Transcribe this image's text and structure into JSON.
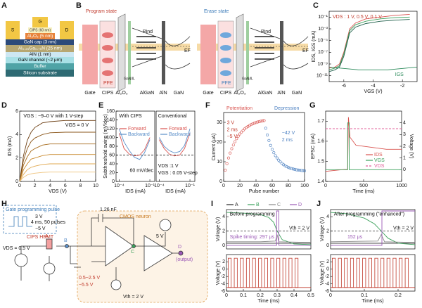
{
  "a": {
    "label": "A",
    "layers": [
      "S",
      "G",
      "D",
      "CIPS (60 nm)",
      "Al₂O₃ (5 nm)",
      "GaN cap (3 nm)",
      "Al₀.₂₅Ga₀.₇₅N (25 nm)",
      "AlN (1 nm)",
      "GaN channel (~2 μm)",
      "Buffer",
      "Silicon substrate"
    ]
  },
  "b": {
    "label": "B",
    "program": "Program state",
    "erase": "Erase state",
    "layers": [
      "Gate",
      "CIPS",
      "Al₂O₃",
      "AlGaN",
      "AlN",
      "GaN"
    ],
    "interlayer": "GaN/IL",
    "fermi": "EF",
    "polarization": [
      "Pind",
      "PFE"
    ]
  },
  "c": {
    "label": "C",
    "chart": {
      "type": "line",
      "xlog": false,
      "ylog": true,
      "xlim": [
        -7,
        -1
      ],
      "xticks": [
        -6,
        -4,
        -2
      ],
      "ylim": [
        1e-12,
        1
      ],
      "yticks": [
        {
          "value": 1e-11,
          "label": "10⁻¹¹"
        },
        {
          "value": 1e-09,
          "label": "10⁻⁹"
        },
        {
          "value": 1e-07,
          "label": "10⁻⁷"
        },
        {
          "value": 1e-05,
          "label": "10⁻⁵"
        },
        {
          "value": 0.001,
          "label": "10⁻³"
        },
        {
          "value": 0.1,
          "label": "10⁻¹"
        }
      ],
      "xlabel": "VGS (V)",
      "ylabel": "IDS, IGS (mA)",
      "annotations": [
        "VDS : 1 V, 0.5 V, 0.1 V",
        "IGS"
      ],
      "series": [
        {
          "color": "#d9534f",
          "x": [
            -7,
            -6.6,
            -6.3,
            -6,
            -5.8,
            -5.6,
            -5.2,
            -4.5,
            -3.5,
            -2.5,
            -1.5
          ],
          "values": [
            2e-10,
            3e-10,
            1e-09,
            1e-07,
            1e-05,
            0.001,
            0.01,
            0.05,
            0.1,
            0.2,
            0.3
          ]
        },
        {
          "color": "#3aa05a",
          "x": [
            -7,
            -6.6,
            -6.3,
            -6,
            -5.8,
            -5.6,
            -5.2,
            -4.5,
            -3.5,
            -2.5,
            -1.5
          ],
          "values": [
            1e-10,
            2e-10,
            5e-10,
            5e-08,
            5e-06,
            0.0005,
            0.005,
            0.02,
            0.05,
            0.08,
            0.1
          ]
        },
        {
          "color": "#1f5f4a",
          "x": [
            -7,
            -6.6,
            -6.3,
            -6,
            -5.8,
            -5.6,
            -5.2,
            -4.5,
            -3.5,
            -2.5,
            -1.5
          ],
          "values": [
            5e-11,
            1e-10,
            3e-10,
            2e-08,
            2e-06,
            0.0002,
            0.002,
            0.008,
            0.02,
            0.03,
            0.04
          ]
        },
        {
          "color": "#2a8a5a",
          "x": [
            -7,
            -5,
            -3,
            -1
          ],
          "values": [
            3e-10,
            1e-10,
            1e-10,
            3e-10
          ]
        }
      ]
    }
  },
  "d": {
    "label": "D",
    "chart": {
      "type": "line",
      "xlim": [
        0,
        10
      ],
      "xticks": [
        0,
        2,
        4,
        6,
        8,
        10
      ],
      "ylim": [
        0,
        6
      ],
      "yticks": [
        0,
        2,
        4,
        6
      ],
      "xlabel": "VDS (V)",
      "ylabel": "IDS (mA)",
      "annotations": [
        "VGS : −9–0 V with 1 V-step",
        "VGS = 0 V"
      ],
      "series": [
        {
          "color": "#6b3d12",
          "x": [
            0,
            0.5,
            1,
            1.5,
            2,
            3,
            4,
            6,
            8,
            10
          ],
          "values": [
            0,
            2.2,
            3.5,
            4.2,
            4.6,
            5.0,
            5.1,
            5.2,
            5.2,
            5.2
          ]
        },
        {
          "color": "#8a5518",
          "x": [
            0,
            0.5,
            1,
            1.5,
            2,
            3,
            4,
            6,
            8,
            10
          ],
          "values": [
            0,
            1.8,
            2.8,
            3.4,
            3.7,
            4.0,
            4.15,
            4.2,
            4.2,
            4.2
          ]
        },
        {
          "color": "#a86d20",
          "x": [
            0,
            0.5,
            1,
            1.5,
            2,
            3,
            4,
            6,
            8,
            10
          ],
          "values": [
            0,
            1.4,
            2.1,
            2.6,
            2.8,
            3.1,
            3.2,
            3.2,
            3.2,
            3.2
          ]
        },
        {
          "color": "#c98a2e",
          "x": [
            0,
            0.5,
            1,
            1.5,
            2,
            3,
            4,
            6,
            8,
            10
          ],
          "values": [
            0,
            1.0,
            1.5,
            1.9,
            2.0,
            2.2,
            2.3,
            2.3,
            2.3,
            2.3
          ]
        },
        {
          "color": "#e0a850",
          "x": [
            0,
            0.5,
            1,
            1.5,
            2,
            3,
            4,
            6,
            8,
            10
          ],
          "values": [
            0,
            0.6,
            1.0,
            1.2,
            1.3,
            1.45,
            1.5,
            1.5,
            1.5,
            1.5
          ]
        },
        {
          "color": "#efc47e",
          "x": [
            0,
            0.5,
            1,
            1.5,
            2,
            3,
            4,
            6,
            8,
            10
          ],
          "values": [
            0,
            0.35,
            0.55,
            0.65,
            0.7,
            0.77,
            0.8,
            0.8,
            0.8,
            0.8
          ]
        }
      ]
    }
  },
  "e": {
    "label": "E",
    "charts": [
      {
        "type": "line",
        "xlog": true,
        "xlim": [
          5e-05,
          0.3
        ],
        "xticks": [
          {
            "value": 0.0001,
            "label": "10⁻⁴"
          },
          {
            "value": 0.1,
            "label": "10⁻¹"
          }
        ],
        "ylim": [
          0,
          160
        ],
        "yticks": [
          0,
          20,
          40,
          60,
          80,
          100,
          120,
          140,
          160
        ],
        "xlabel": "IDS (mA)",
        "ylabel": "Subthreshold swing (mV/dec)",
        "annotations": [
          "With CIPS"
        ],
        "hlines": [
          {
            "value": 60,
            "color": "#000",
            "label": "60 mV/dec"
          }
        ],
        "series": [
          {
            "name": "Forward",
            "color": "#d9534f",
            "x": [
              0.0001,
              0.0003,
              0.001,
              0.003,
              0.01,
              0.03,
              0.1
            ],
            "values": [
              110,
              75,
              62,
              58,
              60,
              72,
              100
            ]
          },
          {
            "name": "Backward",
            "color": "#5b8fc9",
            "x": [
              0.0001,
              0.0003,
              0.001,
              0.003,
              0.01,
              0.03,
              0.1
            ],
            "values": [
              120,
              90,
              70,
              55,
              50,
              65,
              95
            ]
          }
        ]
      },
      {
        "type": "line",
        "xlog": true,
        "xlim": [
          5e-05,
          0.3
        ],
        "xticks": [
          {
            "value": 0.0001,
            "label": "10⁻⁴"
          },
          {
            "value": 0.1,
            "label": "10⁻¹"
          }
        ],
        "ylim": [
          0,
          160
        ],
        "xlabel": "IDS (mA)",
        "annotations": [
          "Conventional",
          "VDS :1 V",
          "VGS : 0.05 V-step"
        ],
        "hlines": [
          {
            "value": 60,
            "color": "#000"
          }
        ],
        "series": [
          {
            "name": "Forward",
            "color": "#d9534f",
            "x": [
              0.0001,
              0.0003,
              0.001,
              0.003,
              0.01,
              0.03,
              0.1
            ],
            "values": [
              95,
              75,
              62,
              58,
              60,
              75,
              110
            ]
          },
          {
            "name": "Backward",
            "color": "#5b8fc9",
            "x": [
              0.0001,
              0.0003,
              0.001,
              0.003,
              0.01,
              0.03,
              0.1
            ],
            "values": [
              100,
              80,
              70,
              65,
              68,
              82,
              120
            ]
          }
        ]
      }
    ]
  },
  "f": {
    "label": "F",
    "chart": {
      "type": "scatter",
      "xlim": [
        0,
        100
      ],
      "xticks": [
        0,
        20,
        40,
        60,
        80,
        100
      ],
      "ylim": [
        0,
        35
      ],
      "yticks": [
        0,
        10,
        20,
        30
      ],
      "xlabel": "Pulse number",
      "ylabel": "Current (μA)",
      "annotations": [
        "3 V",
        "2 ms",
        "−5 V",
        "−42 V",
        "2 ms"
      ],
      "series": [
        {
          "name": "Potentiation",
          "color": "#d9534f",
          "x": [
            2,
            4,
            6,
            8,
            10,
            12,
            14,
            16,
            18,
            20,
            22,
            24,
            26,
            28,
            30,
            32,
            34,
            36,
            38,
            40,
            42,
            44,
            46,
            48,
            50
          ],
          "values": [
            5.74,
            9.0,
            11.9,
            14.4,
            16.6,
            18.5,
            20.2,
            21.7,
            23.0,
            24.1,
            25.1,
            25.9,
            26.7,
            27.4,
            27.9,
            28.4,
            28.9,
            29.3,
            29.6,
            29.9,
            30.2,
            30.4,
            30.6,
            30.8,
            30.9
          ]
        },
        {
          "name": "Depression",
          "color": "#4a7fc0",
          "x": [
            52,
            54,
            56,
            58,
            60,
            62,
            64,
            66,
            68,
            70,
            72,
            74,
            76,
            78,
            80,
            82,
            84,
            86,
            88,
            90,
            92,
            94,
            96,
            98,
            100
          ],
          "values": [
            27.0,
            23.6,
            20.8,
            18.3,
            16.3,
            14.6,
            13.1,
            11.9,
            10.8,
            9.9,
            9.2,
            8.5,
            8.0,
            7.5,
            7.1,
            6.8,
            6.5,
            6.3,
            6.1,
            5.9,
            5.8,
            5.7,
            5.6,
            5.5,
            5.4
          ]
        }
      ]
    }
  },
  "g": {
    "label": "G",
    "chart": {
      "type": "line",
      "xlim": [
        0,
        1000
      ],
      "xticks": [
        0,
        500,
        1000
      ],
      "ylim": [
        1.4,
        1.75
      ],
      "yticks": [
        1.4,
        1.5,
        1.6,
        1.7
      ],
      "y2lim": [
        -1,
        5
      ],
      "y2ticks": [
        0,
        1,
        2,
        3,
        4
      ],
      "xlabel": "Time (ms)",
      "ylabel": "EPSC (mA)",
      "y2label": "Voltage (V)",
      "series": [
        {
          "name": "IDS",
          "color": "#d9534f",
          "x": [
            0,
            250,
            290,
            300,
            320,
            400,
            600,
            800,
            1000
          ],
          "values": [
            1.45,
            1.46,
            1.46,
            1.72,
            1.62,
            1.58,
            1.57,
            1.56,
            1.56
          ]
        },
        {
          "name": "VGS",
          "color": "#3aa05a",
          "axis": "y2",
          "x": [
            0,
            290,
            290,
            310,
            310,
            1000
          ],
          "values": [
            0,
            0,
            4,
            4,
            0,
            0
          ]
        },
        {
          "name": "VDS",
          "color": "#e0609a",
          "axis": "y2",
          "dash": true,
          "x": [
            0,
            1000
          ],
          "values": [
            3.5,
            3.5
          ]
        }
      ]
    }
  },
  "h": {
    "label": "H",
    "texts": [
      "Gate programming pulse",
      "3 V",
      "4 ms, 50 pulses",
      "−5 V",
      "CIPS HEMT",
      "VDS = 0.5 V",
      "A",
      "B",
      "C",
      "D",
      "1.26 nF",
      "CMOS neuron",
      "5 V",
      "0.5~2.5 V",
      "−5.5 V",
      "Vth = 2 V",
      "(output)"
    ]
  },
  "i": {
    "label": "I",
    "top": {
      "type": "line",
      "xlim": [
        0,
        0.5
      ],
      "ylim": [
        -0.5,
        5
      ],
      "yticks": [
        0,
        2,
        4
      ],
      "ylabel": "Voltage (V)",
      "annotations": [
        "Before programming",
        "Spike timing: 297 μs"
      ],
      "hlines": [
        {
          "value": 2,
          "color": "#000",
          "label": "Vth = 2 V"
        }
      ],
      "series": [
        {
          "name": "A",
          "color": "#222",
          "x": [
            0,
            0.5
          ],
          "values": [
            0.3,
            0.3
          ]
        },
        {
          "name": "B",
          "color": "#3aa05a",
          "x": [
            0,
            0.1,
            0.2,
            0.25,
            0.28,
            0.3,
            0.33,
            0.4,
            0.5
          ],
          "values": [
            4.6,
            4.5,
            4.3,
            3.9,
            3.2,
            2.0,
            0.8,
            0.2,
            0.1
          ]
        },
        {
          "name": "C",
          "color": "#888",
          "x": [
            0,
            0.2,
            0.29,
            0.3,
            0.31,
            0.5
          ],
          "values": [
            0.5,
            0.5,
            0.6,
            1.5,
            0.5,
            0.4
          ]
        },
        {
          "name": "D",
          "color": "#9b59b6",
          "x": [
            0,
            0.297,
            0.297,
            0.31,
            0.31,
            0.5
          ],
          "values": [
            0,
            0,
            4.8,
            4.8,
            0,
            0
          ]
        }
      ]
    },
    "bottom": {
      "type": "pulse",
      "xlim": [
        0,
        0.5
      ],
      "xticks": [
        0,
        0.1,
        0.2,
        0.3,
        0.4,
        0.5
      ],
      "ylim": [
        -6,
        4
      ],
      "yticks": [
        -6,
        -4,
        -2,
        0,
        2
      ],
      "xlabel": "Time (ms)",
      "ylabel": "Voltage (V)",
      "pulses": {
        "color": "#c0392b",
        "high": 3,
        "low": -5,
        "width": 0.018,
        "starts": [
          0.01,
          0.046,
          0.082,
          0.118,
          0.154,
          0.19,
          0.226,
          0.262,
          0.298,
          0.334,
          0.37,
          0.406
        ]
      }
    }
  },
  "j": {
    "label": "J",
    "top": {
      "type": "line",
      "xlim": [
        0,
        0.25
      ],
      "ylim": [
        -0.5,
        5
      ],
      "yticks": [
        0,
        2,
        4
      ],
      "ylabel": "Voltage (V)",
      "annotations": [
        "After programming (\"enhanced\")",
        "152 μs"
      ],
      "hlines": [
        {
          "value": 2,
          "color": "#000",
          "label": "Vth = 2 V"
        }
      ],
      "series": [
        {
          "color": "#222",
          "x": [
            0,
            0.25
          ],
          "values": [
            0.3,
            0.3
          ]
        },
        {
          "color": "#3aa05a",
          "x": [
            0,
            0.05,
            0.1,
            0.13,
            0.15,
            0.17,
            0.2,
            0.25
          ],
          "values": [
            4.6,
            4.4,
            3.8,
            3.0,
            2.0,
            1.0,
            0.3,
            0.1
          ]
        },
        {
          "color": "#888",
          "x": [
            0,
            0.14,
            0.15,
            0.16,
            0.25
          ],
          "values": [
            0.5,
            0.6,
            1.5,
            0.5,
            0.4
          ]
        },
        {
          "color": "#9b59b6",
          "x": [
            0,
            0.152,
            0.152,
            0.25
          ],
          "values": [
            0,
            0,
            4.8,
            4.8
          ]
        }
      ]
    },
    "bottom": {
      "type": "pulse",
      "xlim": [
        0,
        0.25
      ],
      "xticks": [
        0,
        0.1,
        0.2
      ],
      "ylim": [
        -6,
        4
      ],
      "yticks": [
        -6,
        -4,
        -2,
        0,
        2
      ],
      "xlabel": "Time (ms)",
      "ylabel": "Voltage (V)",
      "pulses": {
        "color": "#c0392b",
        "high": 3,
        "low": -5,
        "width": 0.009,
        "starts": [
          0.005,
          0.023,
          0.041,
          0.059,
          0.077,
          0.095,
          0.113,
          0.131,
          0.149,
          0.167,
          0.185,
          0.203,
          0.221
        ]
      }
    }
  }
}
